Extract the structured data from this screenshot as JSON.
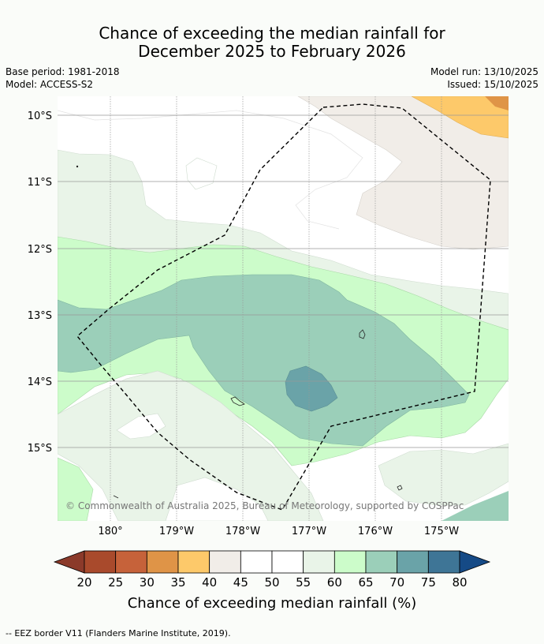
{
  "title": {
    "line1": "Chance of exceeding the median rainfall for",
    "line2": "December 2025 to February 2026"
  },
  "meta": {
    "base_period": "Base period: 1981-2018",
    "model": "Model: ACCESS-S2",
    "model_run": "Model run: 13/10/2025",
    "issued": "Issued: 15/10/2025"
  },
  "map": {
    "lat_labels": [
      "10°S",
      "11°S",
      "12°S",
      "13°S",
      "14°S",
      "15°S"
    ],
    "lon_labels": [
      "180°",
      "179°W",
      "178°W",
      "177°W",
      "176°W",
      "175°W"
    ],
    "copyright": "© Commonwealth of Australia 2025, Bureau of Meteorology, supported by COSPPac"
  },
  "colorbar": {
    "ticks": [
      "20",
      "25",
      "30",
      "35",
      "40",
      "45",
      "50",
      "55",
      "60",
      "65",
      "70",
      "75",
      "80"
    ],
    "label": "Chance of exceeding median rainfall (%)",
    "colors": [
      "#a94a2c",
      "#c6623a",
      "#df9447",
      "#fdc96a",
      "#f1ede8",
      "#ffffff",
      "#ffffff",
      "#e9f4e8",
      "#ccfcca",
      "#9bcfb9",
      "#6aa3a8",
      "#3e7596",
      "#1e4c8e"
    ],
    "low_color": "#8b3a2a",
    "high_color": "#154a86"
  },
  "legend": {
    "eez_text": "-- EEZ border V11 (Flanders Marine Institute, 2019)."
  }
}
